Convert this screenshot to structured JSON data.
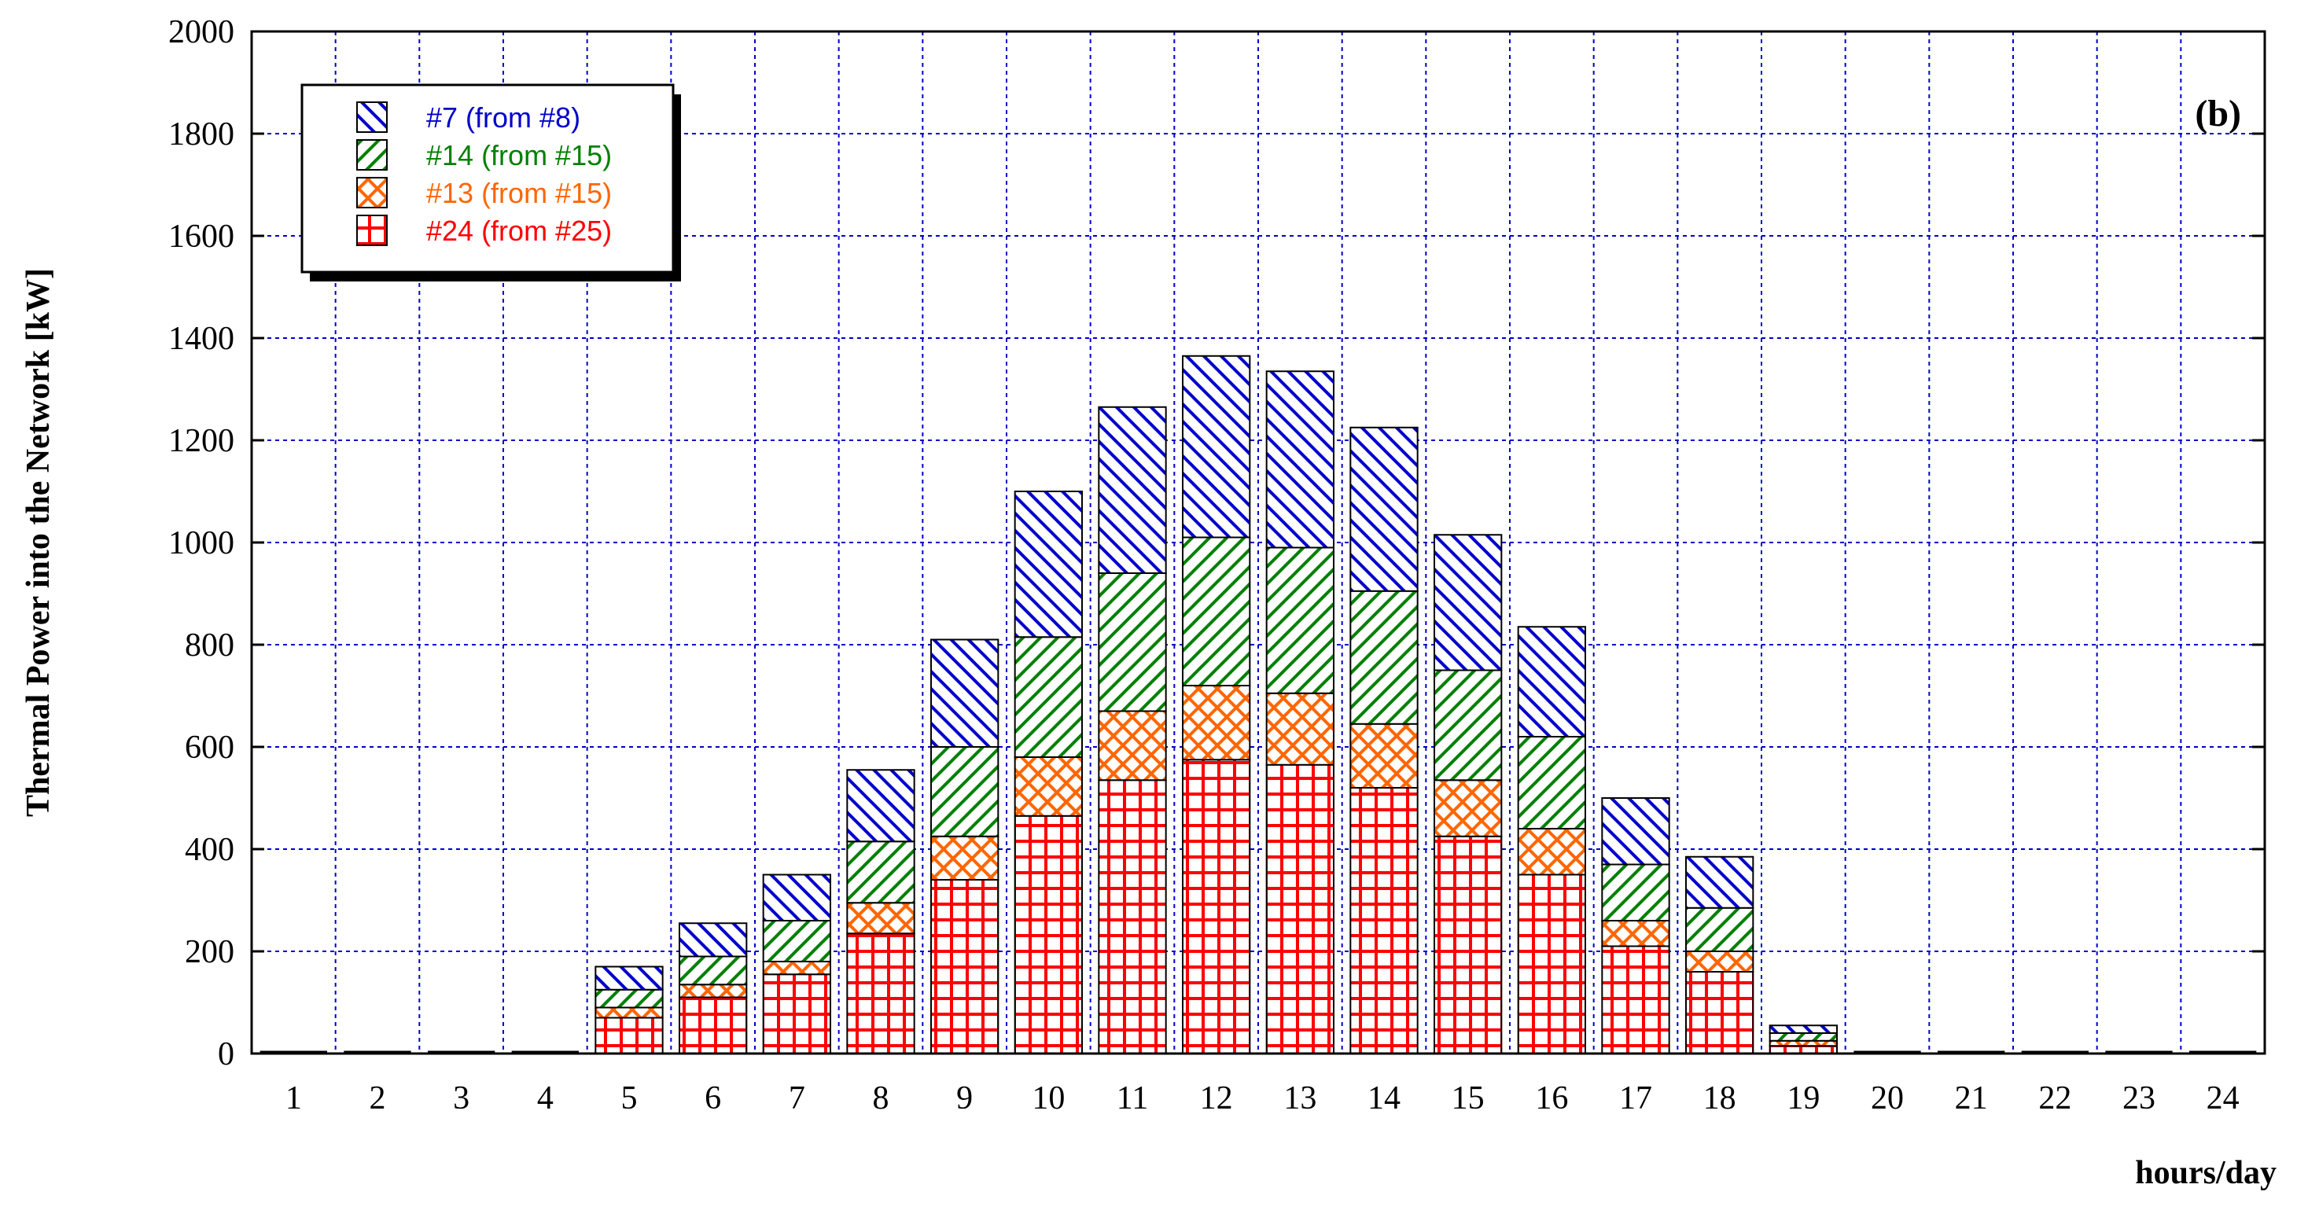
{
  "chart_data": {
    "type": "bar",
    "stacked": true,
    "panel_label": "(b)",
    "ylabel": "Thermal Power into the Network [kW]",
    "xlabel": "hours/day",
    "ylim": [
      0,
      2000
    ],
    "yticks": [
      0,
      200,
      400,
      600,
      800,
      1000,
      1200,
      1400,
      1600,
      1800,
      2000
    ],
    "grid": true,
    "legend_position": "top-left",
    "categories": [
      "1",
      "2",
      "3",
      "4",
      "5",
      "6",
      "7",
      "8",
      "9",
      "10",
      "11",
      "12",
      "13",
      "14",
      "15",
      "16",
      "17",
      "18",
      "19",
      "20",
      "21",
      "22",
      "23",
      "24"
    ],
    "series": [
      {
        "name": "#24 (from #25)",
        "color": "#ff0000",
        "pattern": "grid",
        "values": [
          0,
          0,
          0,
          0,
          70,
          110,
          155,
          235,
          340,
          465,
          535,
          575,
          565,
          520,
          425,
          350,
          210,
          160,
          15,
          0,
          0,
          0,
          0,
          0
        ]
      },
      {
        "name": "#13 (from #15)",
        "color": "#ff6600",
        "pattern": "crosshatch",
        "values": [
          0,
          0,
          0,
          0,
          20,
          25,
          25,
          60,
          85,
          115,
          135,
          145,
          140,
          125,
          110,
          90,
          50,
          40,
          10,
          0,
          0,
          0,
          0,
          0
        ]
      },
      {
        "name": "#14 (from #15)",
        "color": "#008000",
        "pattern": "forward-diagonal",
        "values": [
          0,
          0,
          0,
          0,
          35,
          55,
          80,
          120,
          175,
          235,
          270,
          290,
          285,
          260,
          215,
          180,
          110,
          85,
          15,
          0,
          0,
          0,
          0,
          0
        ]
      },
      {
        "name": "#7 (from #8)",
        "color": "#0000cc",
        "pattern": "back-diagonal",
        "values": [
          0,
          0,
          0,
          0,
          45,
          65,
          90,
          140,
          210,
          285,
          325,
          355,
          345,
          320,
          265,
          215,
          130,
          100,
          15,
          0,
          0,
          0,
          0,
          0
        ]
      }
    ],
    "legend_order": [
      "#7 (from #8)",
      "#14 (from #15)",
      "#13 (from #15)",
      "#24 (from #25)"
    ]
  }
}
